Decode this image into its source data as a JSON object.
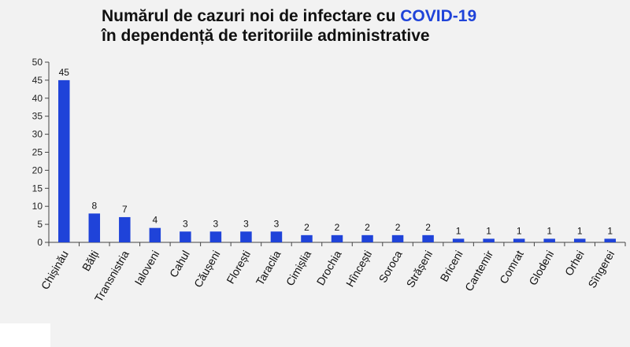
{
  "chart_data": {
    "type": "bar",
    "title_part1": "Numărul de cazuri noi de infectare cu ",
    "title_accent": "COVID-19",
    "title_line2": "în dependență de teritoriile administrative",
    "categories": [
      "Chișinău",
      "Bălți",
      "Transnistria",
      "Ialoveni",
      "Cahul",
      "Căușeni",
      "Florești",
      "Taraclia",
      "Cimișlia",
      "Drochia",
      "Hîncești",
      "Soroca",
      "Strășeni",
      "Briceni",
      "Cantemir",
      "Comrat",
      "Glodeni",
      "Orhei",
      "Sîngerei"
    ],
    "values": [
      45,
      8,
      7,
      4,
      3,
      3,
      3,
      3,
      2,
      2,
      2,
      2,
      2,
      1,
      1,
      1,
      1,
      1,
      1
    ],
    "yticks": [
      "0",
      "5",
      "10",
      "15",
      "20",
      "25",
      "30",
      "35",
      "40",
      "45",
      "50"
    ],
    "ylim": [
      0,
      50
    ],
    "bar_color": "#1f43d9",
    "accent_color": "#1f43d9",
    "grid": false
  }
}
